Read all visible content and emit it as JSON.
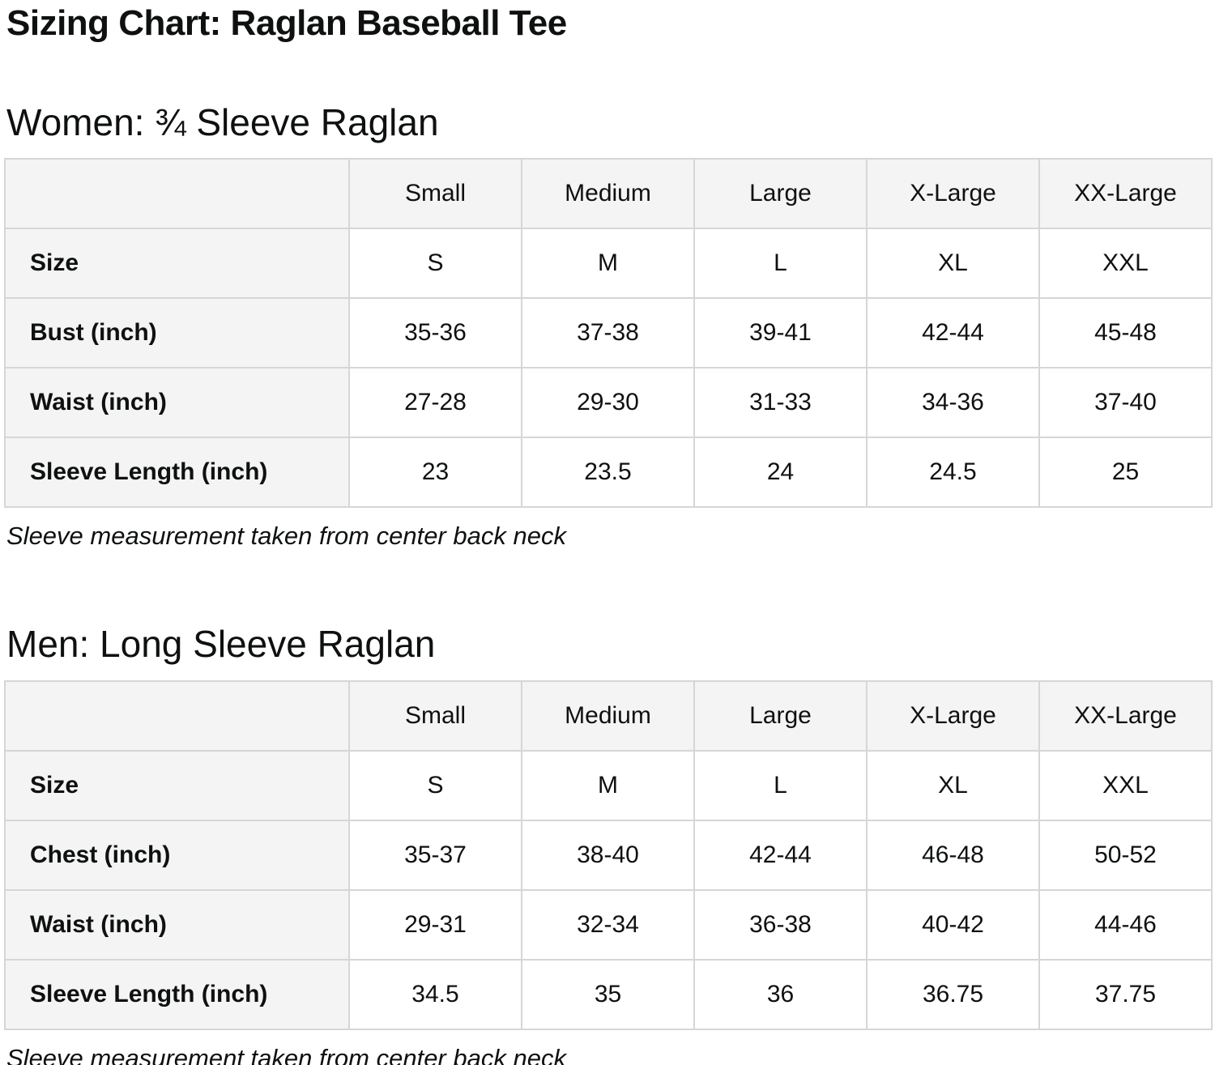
{
  "page": {
    "title": "Sizing Chart: Raglan Baseball Tee"
  },
  "colors": {
    "cell_shaded_bg": "#f4f4f4",
    "cell_border": "#d6d6d6",
    "text": "#0f1111",
    "background": "#ffffff"
  },
  "sections": [
    {
      "heading": "Women: ¾ Sleeve Raglan",
      "note": "Sleeve measurement taken from center back neck",
      "table": {
        "columns": [
          "Small",
          "Medium",
          "Large",
          "X-Large",
          "XX-Large"
        ],
        "rows": [
          {
            "label": "Size",
            "values": [
              "S",
              "M",
              "L",
              "XL",
              "XXL"
            ]
          },
          {
            "label": "Bust (inch)",
            "values": [
              "35-36",
              "37-38",
              "39-41",
              "42-44",
              "45-48"
            ]
          },
          {
            "label": "Waist (inch)",
            "values": [
              "27-28",
              "29-30",
              "31-33",
              "34-36",
              "37-40"
            ]
          },
          {
            "label": "Sleeve Length (inch)",
            "values": [
              "23",
              "23.5",
              "24",
              "24.5",
              "25"
            ]
          }
        ]
      }
    },
    {
      "heading": "Men: Long Sleeve Raglan",
      "note": "Sleeve measurement taken from center back neck",
      "table": {
        "columns": [
          "Small",
          "Medium",
          "Large",
          "X-Large",
          "XX-Large"
        ],
        "rows": [
          {
            "label": "Size",
            "values": [
              "S",
              "M",
              "L",
              "XL",
              "XXL"
            ]
          },
          {
            "label": "Chest (inch)",
            "values": [
              "35-37",
              "38-40",
              "42-44",
              "46-48",
              "50-52"
            ]
          },
          {
            "label": "Waist (inch)",
            "values": [
              "29-31",
              "32-34",
              "36-38",
              "40-42",
              "44-46"
            ]
          },
          {
            "label": "Sleeve Length (inch)",
            "values": [
              "34.5",
              "35",
              "36",
              "36.75",
              "37.75"
            ]
          }
        ]
      }
    }
  ]
}
